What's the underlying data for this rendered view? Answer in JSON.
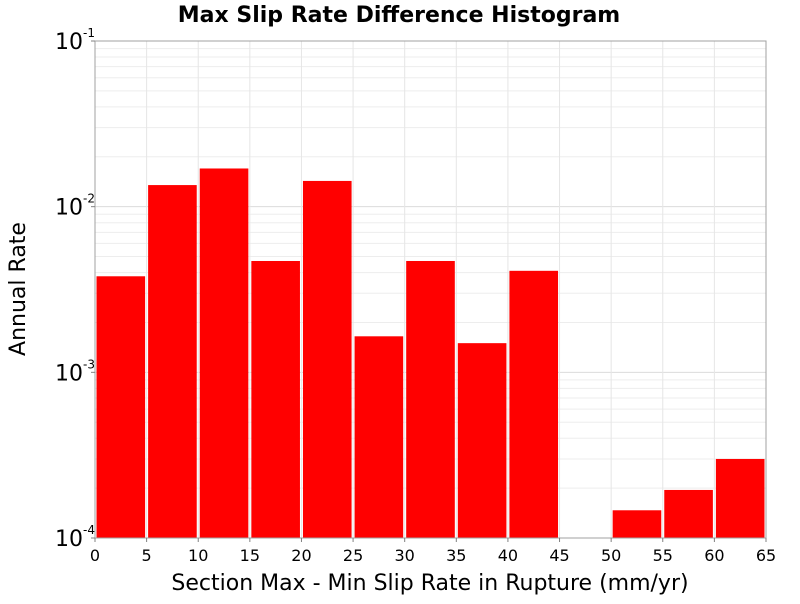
{
  "chart_data": {
    "type": "bar",
    "title": "Max Slip Rate Difference Histogram",
    "xlabel": "Section Max - Min Slip Rate in Rupture (mm/yr)",
    "ylabel": "Annual Rate",
    "y_scale": "log",
    "xlim": [
      0,
      65
    ],
    "ylim": [
      0.0001,
      0.1
    ],
    "grid": true,
    "x_ticks": [
      0,
      5,
      10,
      15,
      20,
      25,
      30,
      35,
      40,
      45,
      50,
      55,
      60,
      65
    ],
    "y_ticks": [
      {
        "value": 0.1,
        "base": "10",
        "exp": "-1"
      },
      {
        "value": 0.01,
        "base": "10",
        "exp": "-2"
      },
      {
        "value": 0.001,
        "base": "10",
        "exp": "-3"
      },
      {
        "value": 0.0001,
        "base": "10",
        "exp": "-4"
      }
    ],
    "bar_color": "#ff0000",
    "bin_width": 5,
    "bins": [
      {
        "x_start": 0,
        "value": 0.0038
      },
      {
        "x_start": 5,
        "value": 0.0135
      },
      {
        "x_start": 10,
        "value": 0.017
      },
      {
        "x_start": 15,
        "value": 0.0047
      },
      {
        "x_start": 20,
        "value": 0.0143
      },
      {
        "x_start": 25,
        "value": 0.00165
      },
      {
        "x_start": 30,
        "value": 0.0047
      },
      {
        "x_start": 35,
        "value": 0.0015
      },
      {
        "x_start": 40,
        "value": 0.0041
      },
      {
        "x_start": 45,
        "value": 0
      },
      {
        "x_start": 50,
        "value": 0.000147
      },
      {
        "x_start": 55,
        "value": 0.000195
      },
      {
        "x_start": 60,
        "value": 0.0003
      }
    ]
  }
}
